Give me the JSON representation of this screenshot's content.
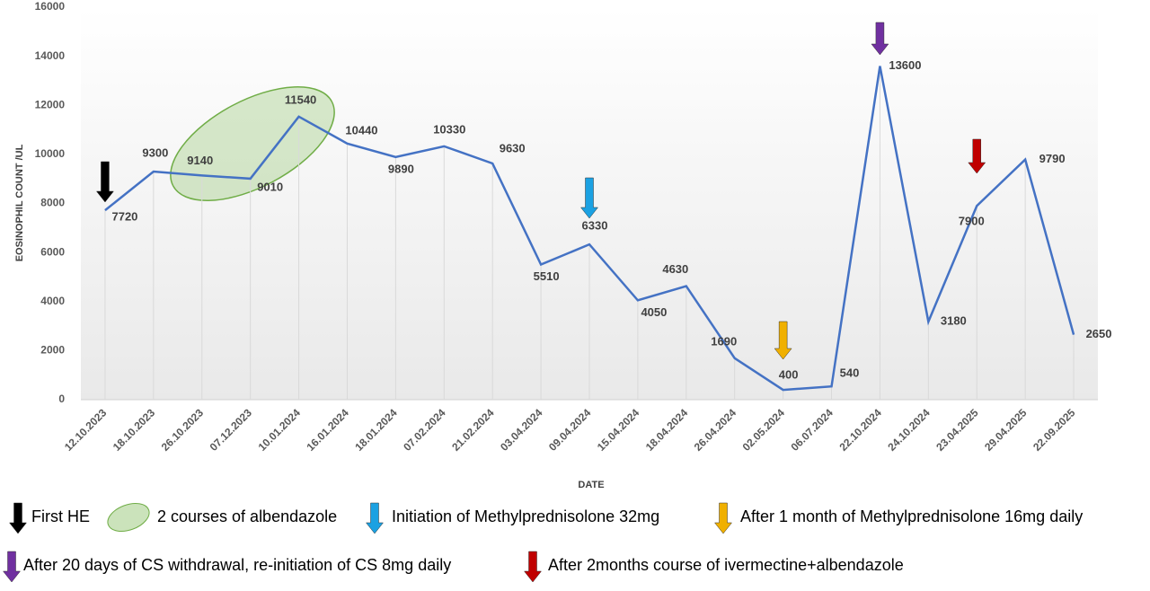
{
  "chart_data": {
    "type": "line",
    "y_label": "EOSINOPHIL COUNT /UL",
    "x_label": "DATE",
    "categories": [
      "12.10.2023",
      "18.10.2023",
      "26.10.2023",
      "07.12.2023",
      "10.01.2024",
      "16.01.2024",
      "18.01.2024",
      "07.02.2024",
      "21.02.2024",
      "03.04.2024",
      "09.04.2024",
      "15.04.2024",
      "18.04.2024",
      "26.04.2024",
      "02.05.2024",
      "06.07.2024",
      "22.10.2024",
      "24.10.2024",
      "23.04.2025",
      "29.04.2025",
      "22.09.2025"
    ],
    "values": [
      7720,
      9300,
      9140,
      9010,
      11540,
      10440,
      9890,
      10330,
      9630,
      5510,
      6330,
      4050,
      4630,
      1690,
      400,
      540,
      13600,
      3180,
      7900,
      9790,
      2650
    ],
    "color": "#4472c4",
    "ylim": [
      0,
      16000
    ],
    "yticks": [
      0,
      2000,
      4000,
      6000,
      8000,
      10000,
      12000,
      14000,
      16000
    ],
    "legend": [
      {
        "text": "First HE",
        "color": "#000000"
      },
      {
        "text": "2 courses of albendazole",
        "color": "#a9d18e"
      },
      {
        "text": "Initiation of Methylprednisolone 32mg",
        "color": "#1ba1e2"
      },
      {
        "text": "After 1 month of Methylprednisolone 16mg daily",
        "color": "#f0b000"
      },
      {
        "text": "After 20 days of CS withdrawal, re-initiation of CS 8mg daily",
        "color": "#7030a0"
      },
      {
        "text": "After 2months course of ivermectine+albendazole",
        "color": "#c00000"
      }
    ]
  }
}
